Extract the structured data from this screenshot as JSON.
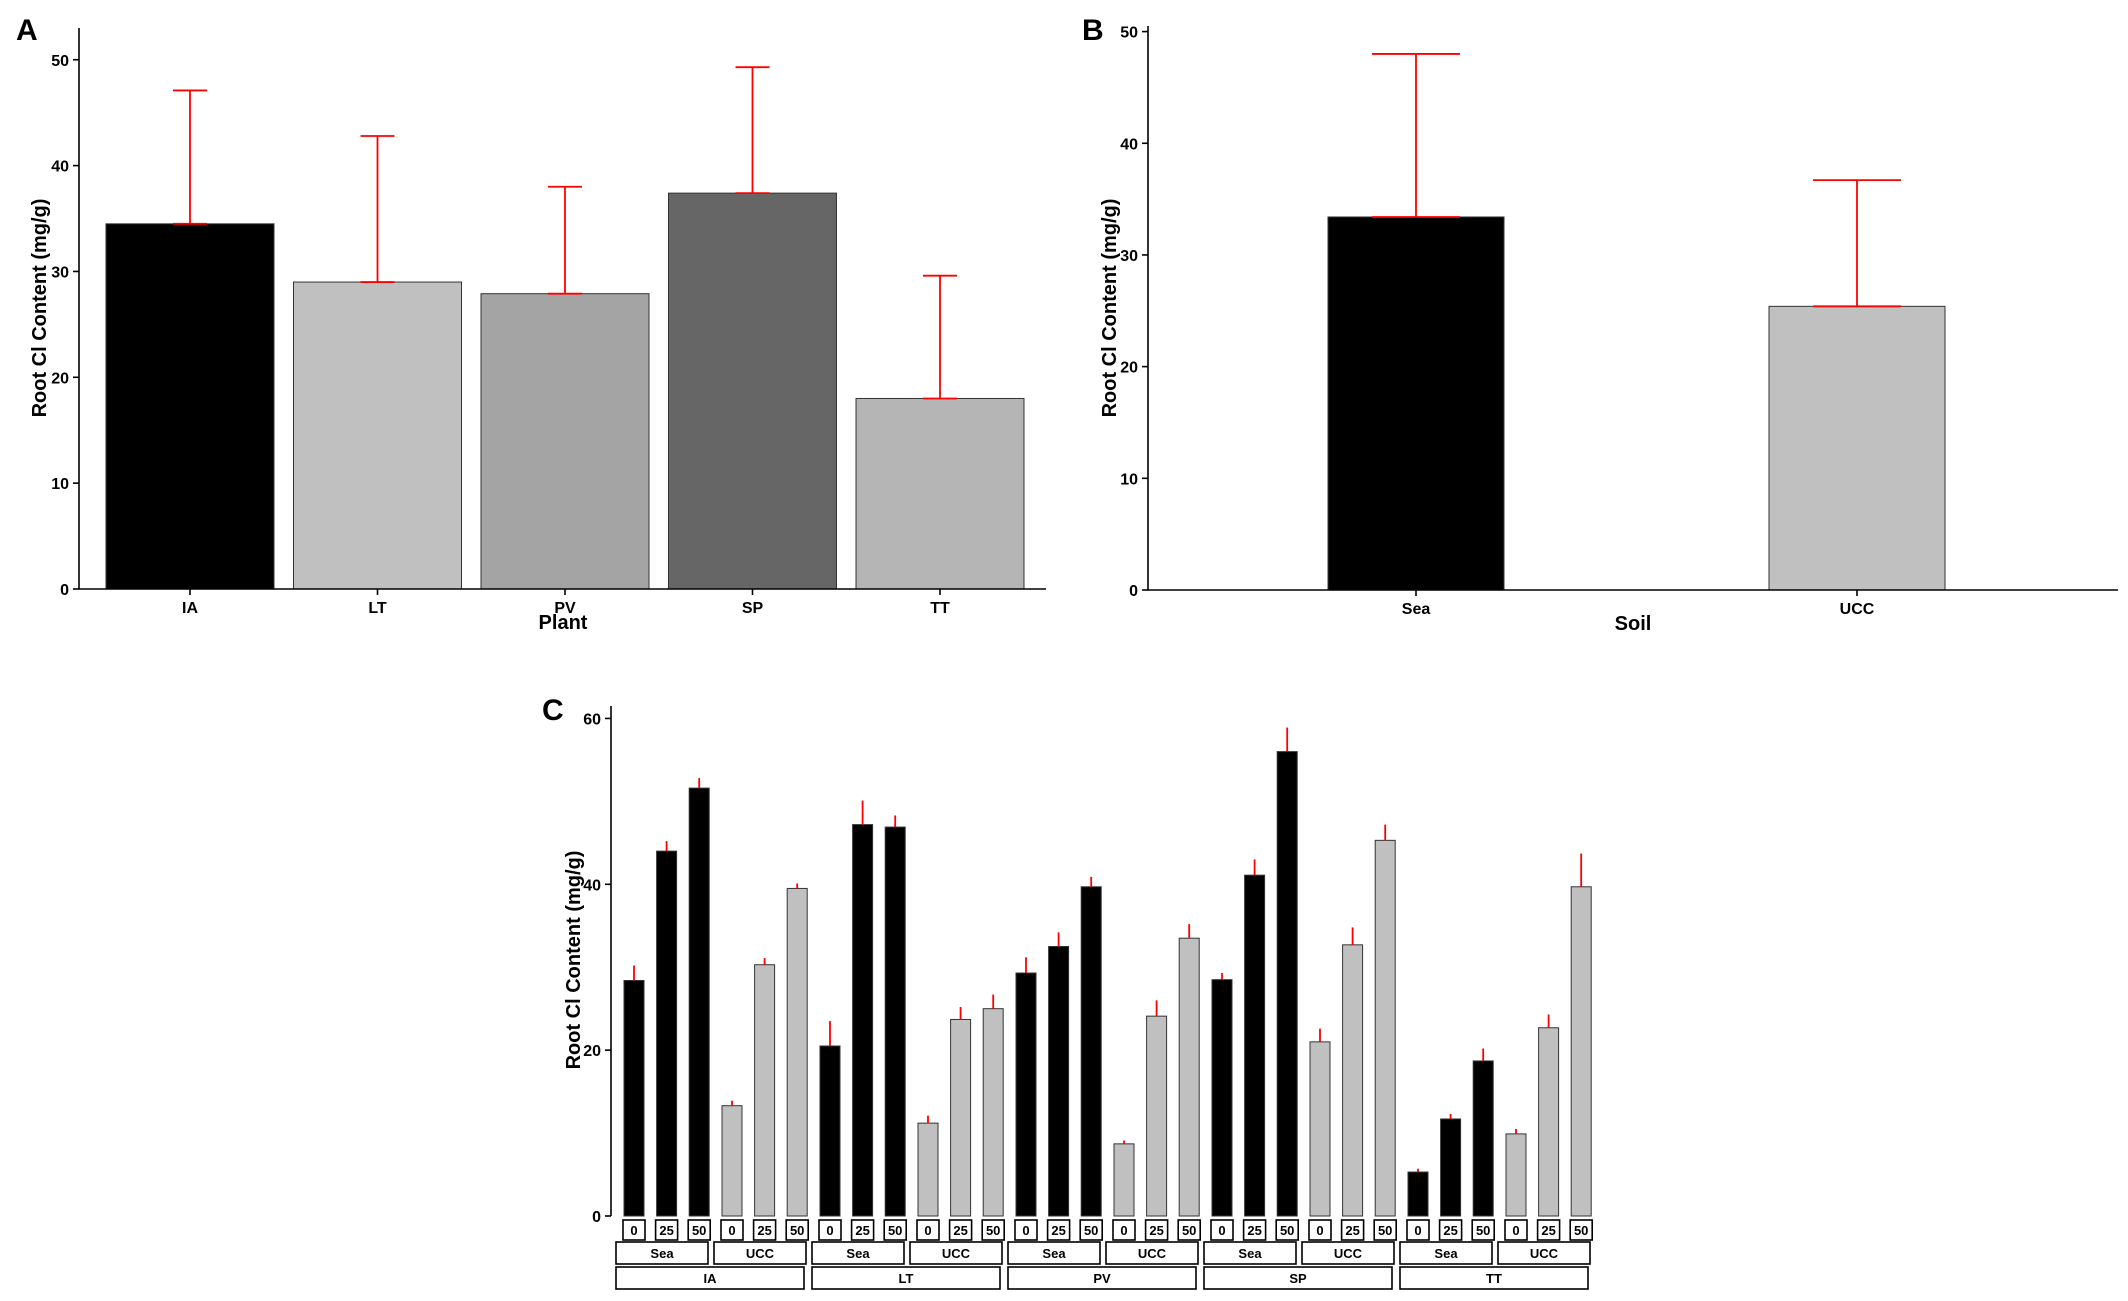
{
  "chart_data": [
    {
      "panel_label": "A",
      "type": "bar",
      "xlabel": "Plant",
      "ylabel": "Root Cl Content (mg/g)",
      "ylim": [
        0,
        53
      ],
      "yticks": [
        0,
        10,
        20,
        30,
        40,
        50
      ],
      "categories": [
        "IA",
        "LT",
        "PV",
        "SP",
        "TT"
      ],
      "values": [
        34.5,
        29.0,
        27.9,
        37.4,
        18.0
      ],
      "error_upper": [
        47.1,
        42.8,
        38.0,
        49.3,
        29.6
      ],
      "colors": [
        "#000000",
        "#c0c0c0",
        "#a4a4a4",
        "#666666",
        "#b5b5b5"
      ],
      "error_color": "#ff0000",
      "grid": false
    },
    {
      "panel_label": "B",
      "type": "bar",
      "xlabel": "Soil",
      "ylabel": "Root Cl Content (mg/g)",
      "ylim": [
        0,
        50.5
      ],
      "yticks": [
        0,
        10,
        20,
        30,
        40,
        50
      ],
      "categories": [
        "Sea",
        "UCC"
      ],
      "values": [
        33.4,
        25.4
      ],
      "error_upper": [
        48.0,
        36.7
      ],
      "colors": [
        "#000000",
        "#c0c0c0"
      ],
      "error_color": "#ff0000",
      "grid": false
    },
    {
      "panel_label": "C",
      "type": "bar",
      "xlabel": "",
      "ylabel": "Root Cl Content (mg/g)",
      "ylim": [
        0,
        61.5
      ],
      "yticks": [
        0,
        20,
        40,
        60
      ],
      "facet_levels": [
        "0",
        "25",
        "50"
      ],
      "soils": [
        "Sea",
        "UCC"
      ],
      "plants": [
        "IA",
        "LT",
        "PV",
        "SP",
        "TT"
      ],
      "soil_colors": {
        "Sea": "#000000",
        "UCC": "#c0c0c0"
      },
      "error_color": "#ff0000",
      "grid": false,
      "groups": [
        {
          "plant": "IA",
          "soil": "Sea",
          "values": [
            28.4,
            44.0,
            51.6
          ],
          "error_upper": [
            30.2,
            45.2,
            52.8
          ]
        },
        {
          "plant": "IA",
          "soil": "UCC",
          "values": [
            13.3,
            30.3,
            39.5
          ],
          "error_upper": [
            13.9,
            31.1,
            40.1
          ]
        },
        {
          "plant": "LT",
          "soil": "Sea",
          "values": [
            20.5,
            47.2,
            46.9
          ],
          "error_upper": [
            23.5,
            50.1,
            48.3
          ]
        },
        {
          "plant": "LT",
          "soil": "UCC",
          "values": [
            11.2,
            23.7,
            25.0
          ],
          "error_upper": [
            12.1,
            25.2,
            26.7
          ]
        },
        {
          "plant": "PV",
          "soil": "Sea",
          "values": [
            29.3,
            32.5,
            39.7
          ],
          "error_upper": [
            31.2,
            34.2,
            40.9
          ]
        },
        {
          "plant": "PV",
          "soil": "UCC",
          "values": [
            8.7,
            24.1,
            33.5
          ],
          "error_upper": [
            9.1,
            26.0,
            35.2
          ]
        },
        {
          "plant": "SP",
          "soil": "Sea",
          "values": [
            28.5,
            41.1,
            56.0
          ],
          "error_upper": [
            29.3,
            43.0,
            58.9
          ]
        },
        {
          "plant": "SP",
          "soil": "UCC",
          "values": [
            21.0,
            32.7,
            45.3
          ],
          "error_upper": [
            22.6,
            34.8,
            47.2
          ]
        },
        {
          "plant": "TT",
          "soil": "Sea",
          "values": [
            5.3,
            11.7,
            18.7
          ],
          "error_upper": [
            5.7,
            12.3,
            20.2
          ]
        },
        {
          "plant": "TT",
          "soil": "UCC",
          "values": [
            9.9,
            22.7,
            39.7
          ],
          "error_upper": [
            10.5,
            24.3,
            43.7
          ]
        }
      ]
    }
  ]
}
